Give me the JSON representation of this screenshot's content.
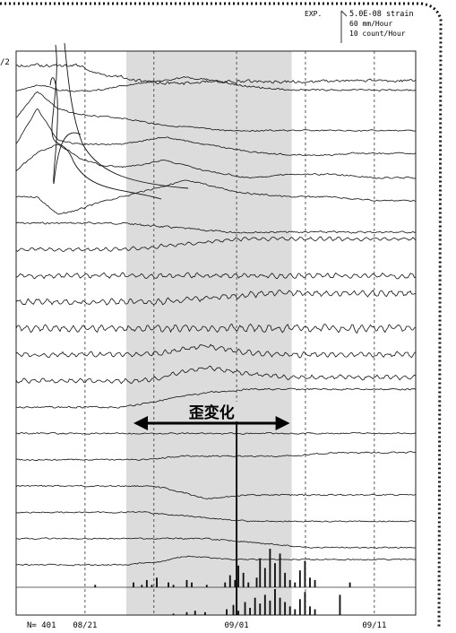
{
  "legend": {
    "label": "EXP.",
    "lines": [
      "5.0E-08 strain",
      "60 mm/Hour",
      "10 count/Hour"
    ]
  },
  "top_left_label": "/2",
  "annotation": "歪変化",
  "count_label": "N= 401",
  "chart_data": {
    "type": "line",
    "x_tick_labels": [
      "08/21",
      "09/01",
      "09/11"
    ],
    "x_ticks": [
      "08/21",
      "08/26",
      "09/01",
      "09/06",
      "09/11"
    ],
    "x_range": [
      "08/16",
      "09/14"
    ],
    "shaded_range": [
      "08/24",
      "09/05"
    ],
    "marker_date": "09/01",
    "trace_count": 20,
    "units": {
      "strain": "5.0E-08 strain",
      "rain": "60 mm/Hour",
      "count": "10 count/Hour"
    },
    "traces": [
      {
        "anchor": [
          0,
          0,
          0,
          0,
          -10,
          -12,
          -18,
          -20,
          -20,
          -18,
          -18,
          -18,
          -18,
          -18,
          -18,
          -17,
          -17,
          -17,
          -17,
          -17
        ],
        "noise": 2.6,
        "seed": 1
      },
      {
        "anchor": [
          0,
          8,
          2,
          0,
          2,
          6,
          10,
          12,
          16,
          14,
          10,
          6,
          4,
          2,
          2,
          2,
          2,
          2,
          2,
          2
        ],
        "noise": 1.4,
        "seed": 2
      },
      {
        "anchor": [
          0,
          30,
          10,
          4,
          2,
          0,
          -4,
          -8,
          -10,
          -12,
          -14,
          -14,
          -14,
          -14,
          -14,
          -14,
          -14,
          -14,
          -14,
          -14
        ],
        "noise": 1.2,
        "seed": 3
      },
      {
        "anchor": [
          0,
          40,
          4,
          0,
          0,
          0,
          4,
          8,
          4,
          0,
          -4,
          -8,
          -10,
          -12,
          -12,
          -12,
          -10,
          -10,
          -10,
          -10
        ],
        "noise": 1.2,
        "seed": 4
      },
      {
        "anchor": [
          0,
          20,
          30,
          14,
          6,
          4,
          6,
          12,
          6,
          0,
          -4,
          -8,
          -6,
          -4,
          -4,
          -4,
          -6,
          -8,
          -8,
          -8
        ],
        "noise": 1.3,
        "seed": 5
      },
      {
        "anchor": [
          0,
          0,
          -20,
          -14,
          -6,
          0,
          6,
          12,
          18,
          14,
          8,
          4,
          2,
          0,
          0,
          0,
          -2,
          -4,
          -4,
          -4
        ],
        "noise": 1.3,
        "seed": 6
      },
      {
        "anchor": [
          0,
          0,
          0,
          0,
          0,
          0,
          -2,
          -4,
          -6,
          -8,
          -10,
          -10,
          -10,
          -10,
          -10,
          -10,
          -10,
          -10,
          -10,
          -10
        ],
        "noise": 1.6,
        "seed": 7
      },
      {
        "anchor": [
          0,
          0,
          0,
          0,
          0,
          0,
          2,
          4,
          6,
          8,
          10,
          12,
          12,
          12,
          12,
          12,
          12,
          12,
          12,
          12
        ],
        "noise": 1.6,
        "seed": 8
      },
      {
        "anchor": [
          0,
          0,
          0,
          0,
          0,
          0,
          0,
          0,
          0,
          0,
          0,
          0,
          0,
          0,
          0,
          0,
          0,
          0,
          0,
          0
        ],
        "noise": 2.2,
        "seed": 9
      },
      {
        "anchor": [
          0,
          0,
          0,
          0,
          0,
          0,
          0,
          0,
          2,
          4,
          6,
          8,
          10,
          10,
          10,
          10,
          10,
          10,
          10,
          10
        ],
        "noise": 2.6,
        "seed": 10
      },
      {
        "anchor": [
          0,
          0,
          0,
          0,
          0,
          0,
          0,
          0,
          0,
          0,
          0,
          0,
          0,
          0,
          0,
          0,
          0,
          0,
          0,
          0
        ],
        "noise": 3.0,
        "seed": 11
      },
      {
        "anchor": [
          0,
          0,
          0,
          0,
          0,
          0,
          0,
          2,
          6,
          10,
          6,
          2,
          0,
          0,
          0,
          0,
          0,
          0,
          0,
          0
        ],
        "noise": 2.2,
        "seed": 12
      },
      {
        "anchor": [
          0,
          0,
          0,
          0,
          0,
          0,
          0,
          4,
          10,
          14,
          12,
          8,
          6,
          4,
          4,
          4,
          4,
          4,
          4,
          4
        ],
        "noise": 2.0,
        "seed": 13
      },
      {
        "anchor": [
          0,
          0,
          0,
          0,
          0,
          0,
          4,
          8,
          12,
          16,
          18,
          20,
          20,
          20,
          20,
          20,
          20,
          20,
          20,
          20
        ],
        "noise": 1.4,
        "seed": 14
      },
      {
        "anchor": [
          0,
          0,
          0,
          0,
          0,
          0,
          0,
          0,
          0,
          0,
          0,
          0,
          0,
          0,
          0,
          0,
          0,
          0,
          0,
          0
        ],
        "noise": 1.2,
        "seed": 15
      },
      {
        "anchor": [
          0,
          0,
          0,
          0,
          0,
          0,
          0,
          2,
          4,
          4,
          4,
          4,
          4,
          4,
          6,
          8,
          8,
          8,
          8,
          8
        ],
        "noise": 1.2,
        "seed": 16
      },
      {
        "anchor": [
          0,
          0,
          0,
          0,
          0,
          0,
          0,
          -2,
          -8,
          -14,
          -12,
          -10,
          -10,
          -10,
          -10,
          -10,
          -10,
          -10,
          -10,
          -10
        ],
        "noise": 1.2,
        "seed": 17
      },
      {
        "anchor": [
          0,
          0,
          0,
          0,
          0,
          0,
          0,
          -2,
          -4,
          -6,
          -8,
          -10,
          -10,
          -10,
          -10,
          -10,
          -10,
          -10,
          -10,
          -10
        ],
        "noise": 1.1,
        "seed": 18
      },
      {
        "anchor": [
          0,
          0,
          0,
          0,
          0,
          0,
          0,
          0,
          0,
          0,
          -2,
          -4,
          -6,
          -8,
          -10,
          -10,
          -10,
          -10,
          -10,
          -10
        ],
        "noise": 1.1,
        "seed": 19
      },
      {
        "anchor": [
          0,
          0,
          0,
          0,
          0,
          0,
          2,
          4,
          10,
          8,
          6,
          6,
          6,
          6,
          6,
          6,
          6,
          6,
          6,
          6
        ],
        "noise": 1.1,
        "seed": 20
      }
    ],
    "counts_upper": [
      0,
      0,
      0,
      0,
      0,
      0,
      0,
      0,
      0,
      0,
      0,
      0,
      0,
      0,
      0,
      0,
      0,
      0,
      0,
      0,
      0,
      0,
      0,
      0,
      0,
      0,
      0,
      0,
      0,
      0,
      0,
      0,
      0,
      0,
      0,
      0,
      0,
      0,
      0,
      0,
      0,
      0,
      0,
      0,
      0,
      0,
      0,
      1,
      0,
      0,
      0,
      0,
      0,
      0,
      0,
      0,
      0,
      0,
      0,
      0,
      0,
      0,
      0,
      0,
      0,
      0,
      0,
      0,
      0,
      0,
      2,
      0,
      0,
      0,
      0,
      1,
      0,
      0,
      3,
      0,
      0,
      1,
      0,
      0,
      4,
      0,
      0,
      0,
      0,
      0,
      0,
      2,
      0,
      0,
      1,
      0,
      0,
      0,
      0,
      0,
      0,
      0,
      3,
      0,
      0,
      2,
      0,
      0,
      0,
      0,
      0,
      0,
      0,
      0,
      1,
      0,
      0,
      0,
      0,
      0,
      0,
      0,
      0,
      0,
      0,
      2,
      0,
      0,
      5,
      0,
      0,
      3,
      0,
      9,
      0,
      0,
      6,
      0,
      0,
      2,
      0,
      0,
      0,
      0,
      4,
      0,
      12,
      0,
      0,
      8,
      0,
      0,
      16,
      0,
      0,
      10,
      0,
      0,
      14,
      0,
      0,
      6,
      0,
      0,
      3,
      0,
      0,
      2,
      0,
      0,
      7,
      0,
      0,
      11,
      0,
      0,
      4,
      0,
      0,
      3,
      0,
      0,
      0,
      0,
      0,
      0,
      0,
      0,
      0,
      0,
      0,
      0,
      0,
      0,
      0,
      0,
      0,
      0,
      0,
      0,
      2,
      0,
      0,
      0,
      0,
      0,
      0,
      0,
      0,
      0,
      0,
      0,
      0,
      0,
      0,
      0,
      0,
      0,
      0,
      0,
      0,
      0,
      0,
      0,
      0,
      0,
      0,
      0,
      0,
      0,
      0,
      0,
      0,
      0,
      0,
      0,
      0,
      0,
      0,
      0
    ],
    "counts_lower": [
      0,
      0,
      0,
      0,
      0,
      0,
      0,
      0,
      0,
      0,
      0,
      0,
      0,
      0,
      0,
      0,
      0,
      0,
      0,
      0,
      0,
      0,
      0,
      0,
      0,
      0,
      0,
      0,
      0,
      0,
      0,
      0,
      0,
      0,
      0,
      0,
      0,
      0,
      0,
      0,
      0,
      0,
      0,
      0,
      0,
      0,
      0,
      0,
      0,
      0,
      0,
      0,
      0,
      0,
      0,
      0,
      0,
      0,
      0,
      0,
      0,
      0,
      0,
      0,
      0,
      0,
      0,
      0,
      0,
      0,
      0,
      0,
      0,
      0,
      0,
      0,
      0,
      0,
      0,
      0,
      0,
      0,
      0,
      0,
      0,
      0,
      0,
      0,
      0,
      0,
      0,
      0,
      0,
      0,
      1,
      0,
      0,
      0,
      0,
      0,
      0,
      0,
      2,
      0,
      0,
      0,
      0,
      3,
      0,
      0,
      0,
      0,
      0,
      2,
      0,
      0,
      0,
      0,
      0,
      0,
      0,
      0,
      0,
      0,
      0,
      0,
      4,
      0,
      0,
      0,
      7,
      0,
      0,
      3,
      0,
      0,
      0,
      9,
      0,
      0,
      5,
      0,
      0,
      12,
      0,
      0,
      8,
      0,
      0,
      14,
      0,
      0,
      10,
      0,
      0,
      18,
      0,
      0,
      12,
      0,
      0,
      9,
      0,
      0,
      6,
      0,
      0,
      4,
      0,
      0,
      11,
      0,
      0,
      16,
      0,
      0,
      6,
      0,
      0,
      4,
      0,
      0,
      0,
      0,
      0,
      0,
      0,
      0,
      0,
      0,
      0,
      0,
      0,
      0,
      14,
      0,
      0,
      0,
      0,
      0,
      0,
      0,
      0,
      0,
      0,
      0,
      0,
      0,
      0,
      0,
      0,
      0,
      0,
      0,
      0,
      0,
      0,
      0,
      0,
      0,
      0,
      0,
      0,
      0,
      0,
      0,
      0,
      0,
      0,
      0,
      0,
      0,
      0,
      0,
      0,
      0,
      0,
      0,
      0,
      0
    ]
  }
}
